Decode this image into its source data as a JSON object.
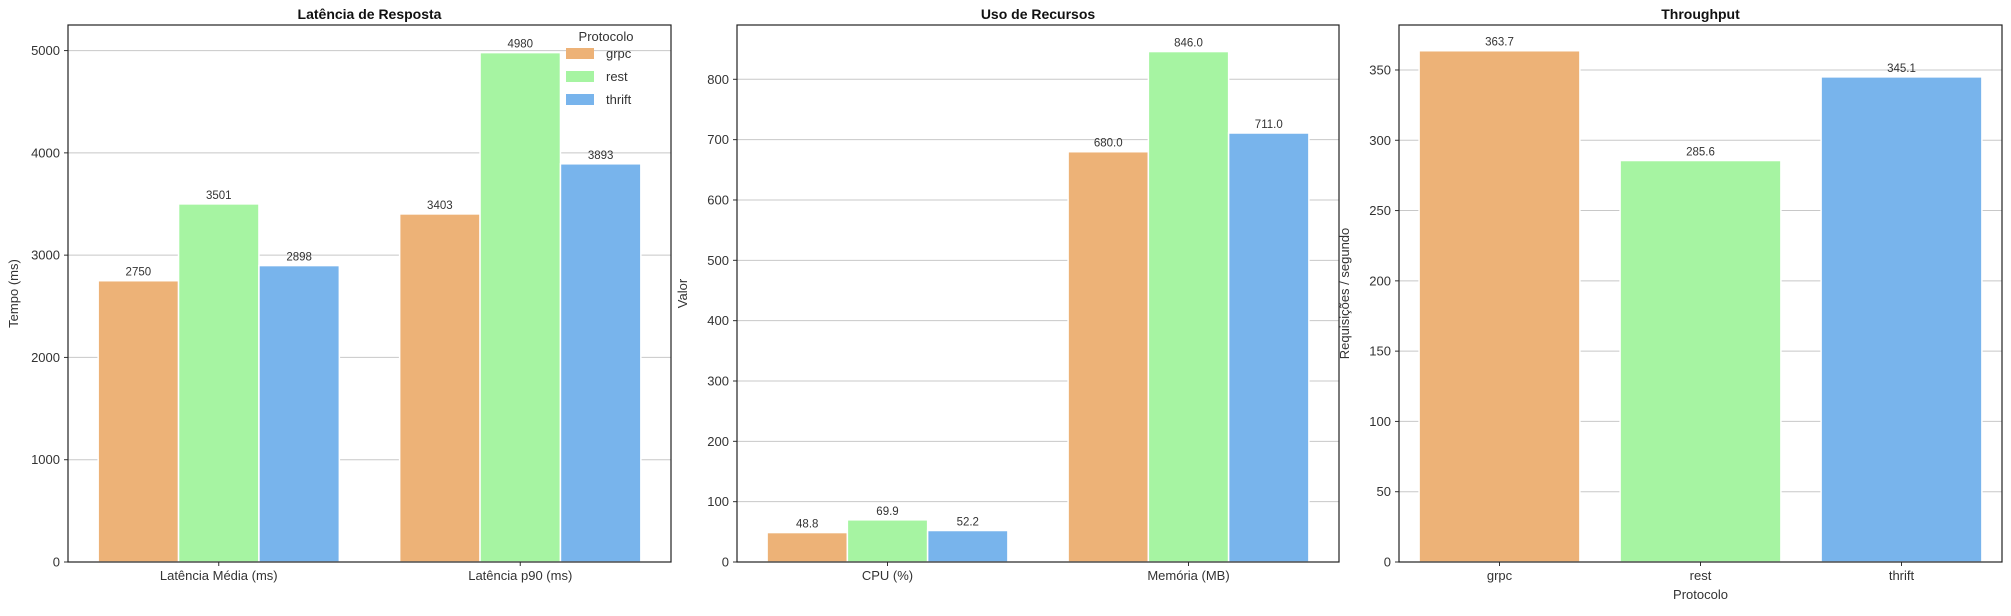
{
  "colors": {
    "grpc": "#EDB277",
    "rest": "#A6F4A2",
    "thrift": "#78B4EC"
  },
  "chart_data": [
    {
      "type": "bar",
      "title": "Latência de Resposta",
      "xlabel": "",
      "ylabel": "Tempo (ms)",
      "ylim": [
        0,
        5250
      ],
      "yticks": [
        0,
        1000,
        2000,
        3000,
        4000,
        5000
      ],
      "grid": true,
      "legend": {
        "title": "Protocolo",
        "placement": "top-right"
      },
      "categories": [
        "Latência Média (ms)",
        "Latência p90 (ms)"
      ],
      "series": [
        {
          "name": "grpc",
          "values": [
            2750,
            3403
          ],
          "labels": [
            "2750",
            "3403"
          ]
        },
        {
          "name": "rest",
          "values": [
            3501,
            4980
          ],
          "labels": [
            "3501",
            "4980"
          ]
        },
        {
          "name": "thrift",
          "values": [
            2898,
            3893
          ],
          "labels": [
            "2898",
            "3893"
          ]
        }
      ]
    },
    {
      "type": "bar",
      "title": "Uso de Recursos",
      "xlabel": "",
      "ylabel": "Valor",
      "ylim": [
        0,
        890
      ],
      "yticks": [
        0,
        100,
        200,
        300,
        400,
        500,
        600,
        700,
        800
      ],
      "grid": true,
      "categories": [
        "CPU (%)",
        "Memória (MB)"
      ],
      "series": [
        {
          "name": "grpc",
          "values": [
            48.8,
            680.0
          ],
          "labels": [
            "48.8",
            "680.0"
          ]
        },
        {
          "name": "rest",
          "values": [
            69.9,
            846.0
          ],
          "labels": [
            "69.9",
            "846.0"
          ]
        },
        {
          "name": "thrift",
          "values": [
            52.2,
            711.0
          ],
          "labels": [
            "52.2",
            "711.0"
          ]
        }
      ]
    },
    {
      "type": "bar",
      "title": "Throughput",
      "xlabel": "Protocolo",
      "ylabel": "Requisições / segundo",
      "ylim": [
        0,
        382
      ],
      "yticks": [
        0,
        50,
        100,
        150,
        200,
        250,
        300,
        350
      ],
      "grid": true,
      "categories": [
        "grpc",
        "rest",
        "thrift"
      ],
      "values": [
        363.7,
        285.6,
        345.1
      ],
      "labels": [
        "363.7",
        "285.6",
        "345.1"
      ]
    }
  ]
}
